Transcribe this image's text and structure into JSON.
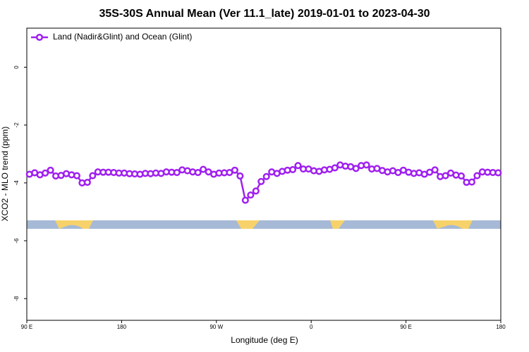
{
  "chart_data": {
    "type": "line",
    "title": "35S-30S Annual Mean (Ver 11.1_late)   2019-01-01 to 2023-04-30",
    "x_label": "Longitude (deg E)",
    "y_label": "XCO2 - MLO trend (ppm)",
    "x": [
      92.5,
      97.5,
      102.5,
      107.5,
      112.5,
      117.5,
      122.5,
      127.5,
      132.5,
      137.5,
      142.5,
      147.5,
      152.5,
      157.5,
      162.5,
      167.5,
      172.5,
      177.5,
      182.5,
      187.5,
      192.5,
      197.5,
      202.5,
      207.5,
      212.5,
      217.5,
      222.5,
      227.5,
      232.5,
      237.5,
      242.5,
      247.5,
      252.5,
      257.5,
      262.5,
      267.5,
      272.5,
      277.5,
      282.5,
      287.5,
      292.5,
      297.5,
      302.5,
      307.5,
      312.5,
      317.5,
      322.5,
      327.5,
      332.5,
      337.5,
      342.5,
      347.5,
      352.5,
      357.5,
      362.5,
      367.5,
      372.5,
      377.5,
      382.5,
      387.5,
      392.5,
      397.5,
      402.5,
      407.5,
      412.5,
      417.5,
      422.5,
      427.5,
      432.5,
      437.5,
      442.5,
      447.5,
      452.5,
      457.5,
      462.5,
      467.5,
      472.5,
      477.5,
      482.5,
      487.5,
      492.5,
      497.5,
      502.5,
      507.5,
      512.5,
      517.5,
      522.5,
      527.5,
      532.5,
      537.5
    ],
    "series": [
      {
        "name": "Land (Nadir&Glint) and Ocean (Glint)",
        "color": "#a020f0",
        "values": [
          -3.7,
          -3.65,
          -3.72,
          -3.66,
          -3.56,
          -3.76,
          -3.74,
          -3.68,
          -3.72,
          -3.75,
          -4.0,
          -3.98,
          -3.75,
          -3.62,
          -3.63,
          -3.63,
          -3.64,
          -3.66,
          -3.66,
          -3.68,
          -3.69,
          -3.7,
          -3.67,
          -3.68,
          -3.66,
          -3.67,
          -3.62,
          -3.63,
          -3.64,
          -3.55,
          -3.58,
          -3.62,
          -3.64,
          -3.53,
          -3.62,
          -3.7,
          -3.66,
          -3.65,
          -3.64,
          -3.56,
          -3.76,
          -4.6,
          -4.42,
          -4.28,
          -3.95,
          -3.78,
          -3.62,
          -3.67,
          -3.6,
          -3.56,
          -3.54,
          -3.4,
          -3.52,
          -3.52,
          -3.58,
          -3.6,
          -3.55,
          -3.53,
          -3.48,
          -3.38,
          -3.42,
          -3.44,
          -3.5,
          -3.4,
          -3.38,
          -3.52,
          -3.5,
          -3.57,
          -3.62,
          -3.58,
          -3.64,
          -3.56,
          -3.63,
          -3.67,
          -3.65,
          -3.7,
          -3.63,
          -3.55,
          -3.78,
          -3.75,
          -3.66,
          -3.73,
          -3.76,
          -3.98,
          -3.97,
          -3.75,
          -3.62,
          -3.63,
          -3.64,
          -3.65
        ]
      }
    ],
    "xlim": [
      90,
      540
    ],
    "xticks": [
      {
        "value": 90,
        "label": "90 E"
      },
      180,
      {
        "value": 270,
        "label": "90 W"
      },
      {
        "value": 360,
        "label": "0"
      },
      {
        "value": 450,
        "label": "90 E"
      },
      {
        "value": 540,
        "label": "180"
      }
    ],
    "ylim": [
      -8.75,
      1.35
    ],
    "yticks": [
      0,
      -2,
      -4,
      -6,
      -8
    ],
    "legend": "upper left"
  }
}
